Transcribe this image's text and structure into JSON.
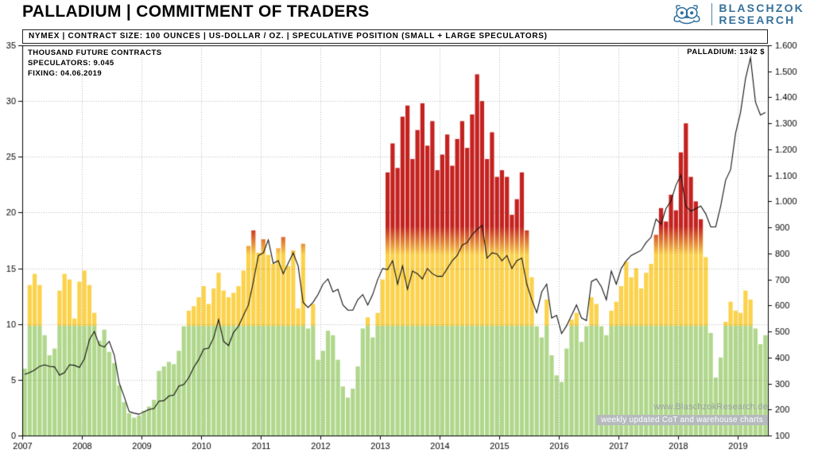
{
  "header": {
    "title": "PALLADIUM | COMMITMENT OF TRADERS",
    "logo_line1": "BLASCHZOK",
    "logo_line2": "RESEARCH"
  },
  "info_bar": "NYMEX | CONTRACT SIZE: 100 OUNCES | US-DOLLAR / OZ. | SPECULATIVE POSITION (SMALL + LARGE SPECULATORS)",
  "annotations": {
    "axis_label": "THOUSAND FUTURE CONTRACTS",
    "speculators": "SPECULATORS: 9.045",
    "fixing": "FIXING: 04.06.2019",
    "price_label": "PALLADIUM: 1342 $",
    "watermark_url": "www.BlaschzokResearch.de",
    "watermark_tagline": "weekly updated CoT and warehouse charts"
  },
  "chart_data": {
    "type": "bar",
    "title": "PALLADIUM | COMMITMENT OF TRADERS",
    "subtitle": "NYMEX | CONTRACT SIZE: 100 OUNCES | US-DOLLAR / OZ. | SPECULATIVE POSITION (SMALL + LARGE SPECULATORS)",
    "x_range": [
      2007.0,
      2019.5
    ],
    "months_per_point": 1,
    "x_ticks": [
      2007,
      2008,
      2009,
      2010,
      2011,
      2012,
      2013,
      2014,
      2015,
      2016,
      2017,
      2018,
      2019
    ],
    "left_axis": {
      "label": "THOUSAND FUTURE CONTRACTS",
      "range": [
        0,
        35
      ],
      "ticks": [
        0,
        5,
        10,
        15,
        20,
        25,
        30,
        35
      ]
    },
    "right_axis": {
      "label": "US-DOLLAR / OZ.",
      "range": [
        100,
        1600
      ],
      "tick_values": [
        100,
        200,
        300,
        400,
        500,
        600,
        700,
        800,
        900,
        1000,
        1100,
        1200,
        1300,
        1400,
        1500,
        1600
      ],
      "tick_labels": [
        "100",
        "200",
        "300",
        "400",
        "500",
        "600",
        "700",
        "800",
        "900",
        "1.000",
        "1.100",
        "1.200",
        "1.300",
        "1.400",
        "1.500",
        "1.600"
      ]
    },
    "grid": {
      "horizontal": true,
      "vertical": true,
      "style": "dotted"
    },
    "band_colors": {
      "green": "#b0d78c",
      "yellow": "#fbd24b",
      "red": "#c42220",
      "green_max": 9.8,
      "yellow_max": 16.2,
      "red_min": 18.8
    },
    "line_color": "#111111",
    "series": [
      {
        "name": "SPECULATIVE POSITION (SMALL + LARGE SPECULATORS), THOUSAND FUTURE CONTRACTS",
        "type": "bar",
        "axis": "left",
        "values": [
          6.0,
          13.5,
          14.5,
          13.5,
          9.0,
          7.2,
          7.8,
          13.0,
          14.5,
          14.0,
          10.5,
          13.8,
          14.8,
          13.5,
          11.0,
          8.5,
          9.5,
          7.5,
          6.5,
          4.5,
          3.0,
          2.0,
          1.6,
          1.8,
          2.2,
          2.6,
          3.2,
          5.8,
          6.2,
          6.6,
          6.4,
          7.6,
          9.8,
          11.2,
          11.6,
          12.4,
          13.4,
          11.8,
          13.2,
          14.6,
          13.0,
          12.4,
          12.8,
          13.4,
          14.8,
          17.0,
          18.4,
          16.4,
          17.6,
          16.2,
          15.4,
          16.8,
          17.8,
          15.2,
          16.6,
          11.4,
          17.2,
          9.6,
          11.8,
          6.8,
          7.6,
          9.4,
          9.0,
          6.8,
          4.4,
          3.4,
          4.2,
          6.2,
          9.6,
          10.6,
          8.8,
          11.0,
          14.0,
          23.6,
          26.2,
          24.0,
          28.6,
          29.6,
          24.8,
          27.4,
          29.8,
          26.0,
          28.2,
          23.8,
          25.2,
          27.0,
          24.2,
          26.6,
          28.2,
          25.8,
          28.8,
          32.4,
          30.0,
          24.8,
          27.2,
          23.2,
          23.8,
          23.2,
          19.8,
          21.2,
          23.6,
          18.4,
          14.2,
          9.8,
          8.8,
          12.2,
          7.2,
          5.4,
          4.8,
          7.8,
          10.4,
          11.0,
          8.4,
          9.8,
          12.4,
          11.8,
          9.8,
          9.0,
          11.2,
          12.0,
          13.4,
          15.6,
          14.2,
          15.0,
          13.2,
          14.6,
          15.4,
          18.0,
          20.4,
          19.2,
          21.6,
          20.2,
          25.4,
          28.0,
          23.2,
          21.0,
          19.4,
          16.0,
          9.2,
          5.2,
          7.0,
          10.2,
          12.0,
          11.2,
          11.0,
          13.0,
          12.2,
          9.6,
          8.2,
          9.0
        ]
      },
      {
        "name": "PALLADIUM PRICE (US-DOLLAR / OZ.)",
        "type": "line",
        "axis": "right",
        "values": [
          335,
          342,
          352,
          366,
          372,
          366,
          364,
          332,
          342,
          372,
          370,
          362,
          395,
          468,
          500,
          448,
          440,
          462,
          410,
          302,
          250,
          192,
          186,
          182,
          192,
          200,
          204,
          232,
          234,
          252,
          256,
          290,
          296,
          322,
          362,
          392,
          432,
          436,
          476,
          546,
          462,
          446,
          496,
          520,
          562,
          602,
          692,
          792,
          802,
          852,
          762,
          772,
          722,
          762,
          802,
          752,
          612,
          592,
          612,
          642,
          682,
          702,
          652,
          662,
          602,
          582,
          582,
          622,
          642,
          602,
          642,
          700,
          742,
          738,
          772,
          682,
          752,
          662,
          732,
          722,
          702,
          742,
          722,
          712,
          712,
          742,
          772,
          792,
          832,
          842,
          872,
          892,
          908,
          782,
          802,
          798,
          772,
          792,
          742,
          772,
          782,
          682,
          622,
          572,
          652,
          682,
          552,
          562,
          492,
          522,
          562,
          602,
          552,
          542,
          692,
          702,
          672,
          622,
          732,
          682,
          742,
          772,
          792,
          802,
          812,
          842,
          862,
          932,
          912,
          972,
          1002,
          1062,
          1102,
          982,
          962,
          972,
          982,
          952,
          902,
          902,
          982,
          1082,
          1122,
          1262,
          1342,
          1472,
          1552,
          1382,
          1332,
          1342
        ]
      }
    ],
    "latest": {
      "speculators_thousand_contracts": 9.045,
      "fixing_date": "04.06.2019",
      "palladium_usd": 1342
    }
  }
}
